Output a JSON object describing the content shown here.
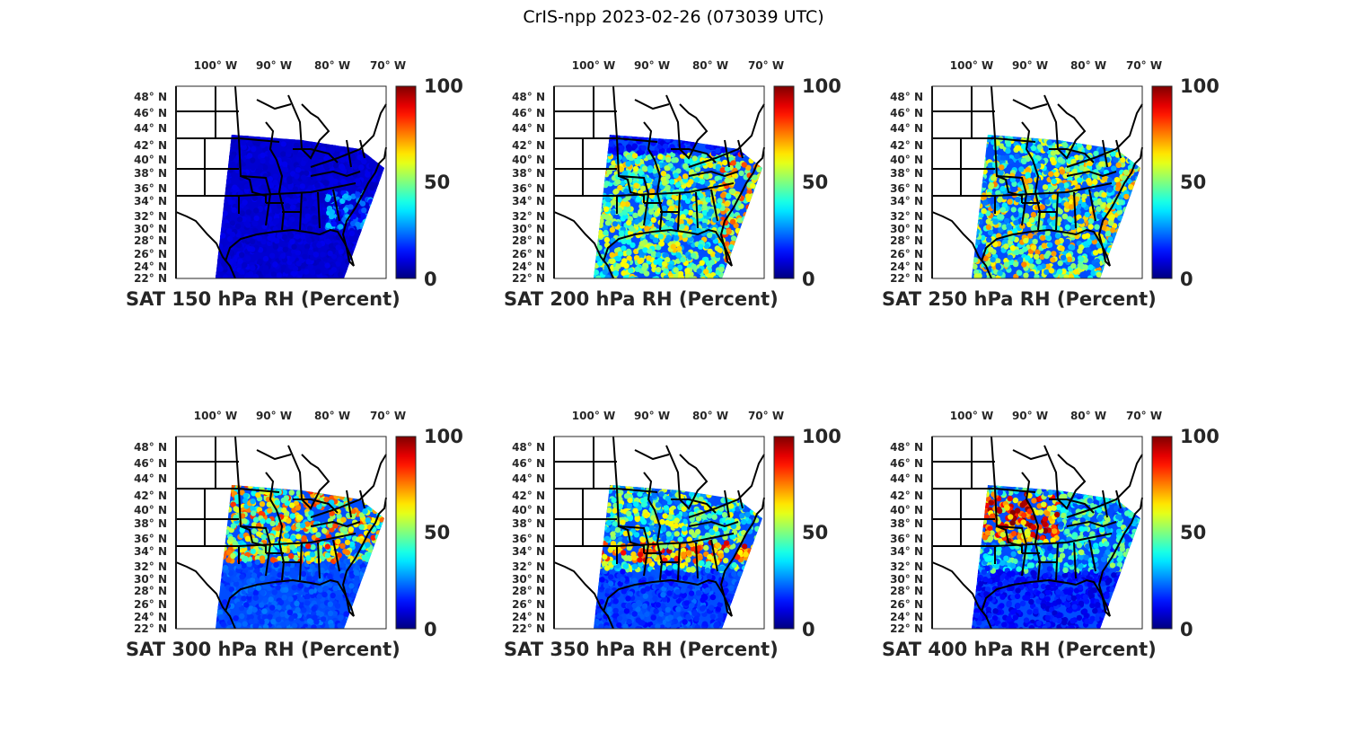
{
  "figure": {
    "title": "CrIS-npp 2023-02-26 (073039 UTC)"
  },
  "map_axes": {
    "lon_ticks": [
      "100° W",
      "90° W",
      "80° W",
      "70° W"
    ],
    "lat_ticks": [
      "48° N",
      "46° N",
      "44° N",
      "42° N",
      "40° N",
      "38° N",
      "36° N",
      "34° N",
      "32° N",
      "30° N",
      "28° N",
      "26° N",
      "24° N",
      "22° N"
    ]
  },
  "colorbar": {
    "ticks": [
      "100",
      "50",
      "0"
    ],
    "range": [
      0,
      100
    ],
    "colormap": "jet"
  },
  "panels": [
    {
      "title": "SAT 150 hPa RH (Percent)",
      "pressure_hPa": 150
    },
    {
      "title": "SAT 200 hPa RH (Percent)",
      "pressure_hPa": 200
    },
    {
      "title": "SAT 250 hPa RH (Percent)",
      "pressure_hPa": 250
    },
    {
      "title": "SAT 300 hPa RH (Percent)",
      "pressure_hPa": 300
    },
    {
      "title": "SAT 350 hPa RH (Percent)",
      "pressure_hPa": 350
    },
    {
      "title": "SAT 400 hPa RH (Percent)",
      "pressure_hPa": 400
    }
  ]
}
